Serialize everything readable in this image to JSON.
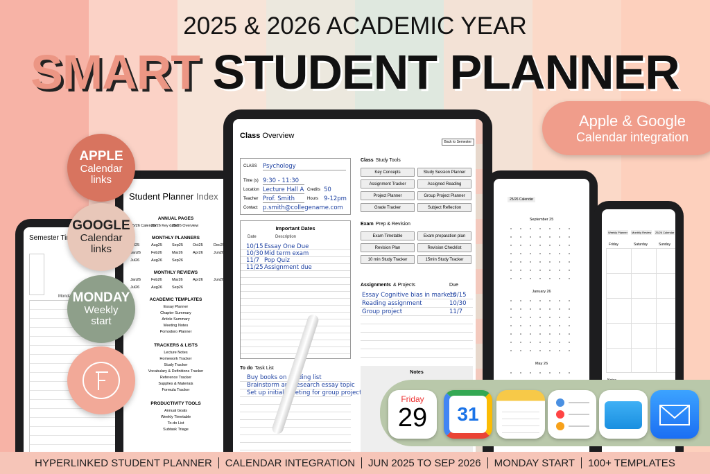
{
  "header": {
    "subtitle": "2025 & 2026 ACADEMIC YEAR",
    "title_accent": "SMART",
    "title": "STUDENT PLANNER"
  },
  "callout": {
    "line1": "Apple & Google",
    "line2": "Calendar integration"
  },
  "badges": [
    {
      "title": "APPLE",
      "text": "Calendar links"
    },
    {
      "title": "GOOGLE",
      "text": "Calendar links"
    },
    {
      "title": "MONDAY",
      "text": "Weekly start"
    }
  ],
  "footer": [
    "HYPERLINKED STUDENT PLANNER",
    "CALENDAR INTEGRATION",
    "JUN 2025 TO SEP 2026",
    "MONDAY START",
    "100+ TEMPLATES"
  ],
  "app_icons": {
    "calendar_day": "Friday",
    "calendar_date": "29",
    "google_date": "31"
  },
  "left_tablet": {
    "title": "Semester Timetable",
    "column": "Monday"
  },
  "index_tablet": {
    "title": "Student Planner",
    "title_light": "Index",
    "sections": [
      {
        "heading": "ANNUAL PAGES",
        "items": [
          "25/26 Calendar",
          "25/26 Key dates",
          "25/26 Overview"
        ]
      },
      {
        "heading": "MONTHLY PLANNERS",
        "items": [
          "Jul25",
          "Aug25",
          "Sep25",
          "Oct25",
          "Dec25",
          "Jan26",
          "Feb26",
          "Mar26",
          "Apr26",
          "Jun26",
          "Jul26",
          "Aug26",
          "Sep26"
        ]
      },
      {
        "heading": "MONTHLY REVIEWS",
        "items": [
          "Jan26",
          "Feb26",
          "Mar26",
          "Apr26",
          "Jun26",
          "Jul26",
          "Aug26",
          "Sep26"
        ]
      },
      {
        "heading": "ACADEMIC TEMPLATES",
        "items": [
          "Essay Planner",
          "Chapter Summary",
          "Article Summary",
          "Meeting Notes",
          "Pomodoro Planner"
        ]
      },
      {
        "heading": "TRACKERS & LISTS",
        "items": [
          "Lecture Notes",
          "Homework Tracker",
          "Study Tracker",
          "Vocabulary & Definitions Tracker",
          "Reference Tracker",
          "Supplies & Materials",
          "Formula Tracker"
        ]
      },
      {
        "heading": "PRODUCTIVITY TOOLS",
        "items": [
          "Annual Goals",
          "Weekly Timetable",
          "To-do List",
          "Subtask Triage"
        ]
      }
    ]
  },
  "main_tablet": {
    "title": "Class",
    "title_light": "Overview",
    "back": "Back to Semester",
    "info": [
      {
        "label": "CLASS",
        "value": "Psychology"
      },
      {
        "label": "Time (s)",
        "value": "9:30 - 11:30"
      },
      {
        "label": "Location",
        "value": "Lecture Hall A"
      },
      {
        "label": "Teacher",
        "value": "Prof. Smith"
      },
      {
        "label": "Contact",
        "value": "p.smith@collegename.com"
      }
    ],
    "credits": {
      "label": "Credits",
      "value": "50"
    },
    "hours": {
      "label": "Hours",
      "value": "9-12pm"
    },
    "dates": {
      "title": "Important Dates",
      "col_date": "Date",
      "col_desc": "Description",
      "rows": [
        [
          "10/15",
          "Essay One Due"
        ],
        [
          "10/30",
          "Mid term exam"
        ],
        [
          "11/7",
          "Pop Quiz"
        ],
        [
          "11/25",
          "Assignment due"
        ]
      ]
    },
    "todo": {
      "title": "To do",
      "title_light": "Task List",
      "items": [
        "Buy books on reading list",
        "Brainstorm and research essay topic",
        "Set up initial meeting for group project"
      ]
    },
    "tools": {
      "title": "Class",
      "title_light": "Study Tools",
      "items": [
        "Key Concepts",
        "Study Session Planner",
        "Assignment Tracker",
        "Assigned Reading",
        "Project Planner",
        "Group Project Planner",
        "Grade Tracker",
        "Subject Reflection"
      ]
    },
    "exam": {
      "title": "Exam",
      "title_light": "Prep & Revision",
      "items": [
        "Exam Timetable",
        "Exam preparation plan",
        "Revision Plan",
        "Revision Checklist",
        "10 min Study Tracker",
        "15min Study Tracker"
      ]
    },
    "assignments": {
      "title": "Assignments",
      "title_light": "& Projects",
      "col_due": "Due",
      "rows": [
        [
          "Essay Cognitive bias in markets",
          "10/15"
        ],
        [
          "Reading assignment",
          "10/30"
        ],
        [
          "Group project",
          "11/7"
        ]
      ]
    },
    "notes": "Notes"
  },
  "right_tablet": {
    "tab": "25/26 Calendar",
    "months": [
      "September 25",
      "January 26",
      "May 26"
    ]
  },
  "far_right_tablet": {
    "tabs": [
      "Weekly Planner",
      "Monthly Review",
      "25/26 Calendar"
    ],
    "days": [
      "Friday",
      "Saturday",
      "Sunday"
    ],
    "notes": "Notes"
  }
}
